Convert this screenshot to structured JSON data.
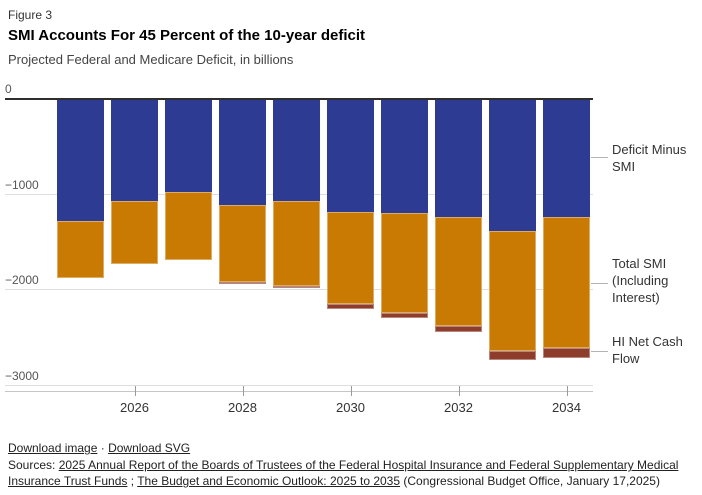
{
  "figure_label": "Figure 3",
  "title": "SMI Accounts For 45 Percent of the 10-year deficit",
  "subtitle": "Projected Federal and Medicare Deficit, in billions",
  "chart_data": {
    "type": "bar",
    "stacked": true,
    "direction": "negative-down-from-zero",
    "title": "SMI Accounts For 45 Percent of the 10-year deficit",
    "subtitle": "Projected Federal and Medicare Deficit, in billions",
    "categories": [
      "2025",
      "2026",
      "2027",
      "2028",
      "2029",
      "2030",
      "2031",
      "2032",
      "2033",
      "2034"
    ],
    "x_tick_labels": [
      "2026",
      "2028",
      "2030",
      "2032",
      "2034"
    ],
    "series": [
      {
        "name": "Deficit Minus SMI",
        "color": "#2d3b93",
        "values": [
          -1260,
          -1055,
          -965,
          -1100,
          -1060,
          -1170,
          -1180,
          -1225,
          -1370,
          -1220
        ]
      },
      {
        "name": "Total SMI (Including Interest)",
        "color": "#c97a02",
        "values": [
          -605,
          -655,
          -710,
          -805,
          -880,
          -960,
          -1050,
          -1140,
          -1255,
          -1375
        ]
      },
      {
        "name": "HI Net Cash Flow",
        "color": "#8e3c2b",
        "values": [
          0,
          0,
          0,
          -20,
          -25,
          -55,
          -50,
          -60,
          -90,
          -105
        ]
      }
    ],
    "stack_totals": [
      -1865,
      -1710,
      -1675,
      -1925,
      -1965,
      -2185,
      -2280,
      -2425,
      -2715,
      -2700
    ],
    "ylim": [
      -3000,
      0
    ],
    "y_ticks": [
      0,
      -1000,
      -2000,
      -3000
    ],
    "y_tick_labels": [
      "0",
      "−1000",
      "−2000",
      "−3000"
    ],
    "grid": "horizontal",
    "legend_position": "right"
  },
  "legend": {
    "items": [
      {
        "label": "Deficit Minus SMI"
      },
      {
        "label": "Total SMI (Including Interest)"
      },
      {
        "label": "HI Net Cash Flow"
      }
    ]
  },
  "footer": {
    "download_image_label": "Download image",
    "separator": "·",
    "download_svg_label": "Download SVG",
    "sources_parts": [
      {
        "text": "Sources: ",
        "underline": false
      },
      {
        "text": "2025 Annual Report of the Boards of Trustees of the Federal Hospital Insurance and Federal Supplementary Medical Insurance Trust Funds",
        "underline": true
      },
      {
        "text": " ; ",
        "underline": false
      },
      {
        "text": "The Budget and Economic Outlook: 2025 to 2035",
        "underline": true
      },
      {
        "text": " (Congressional Budget Office, January 17,2025)",
        "underline": false
      }
    ]
  }
}
